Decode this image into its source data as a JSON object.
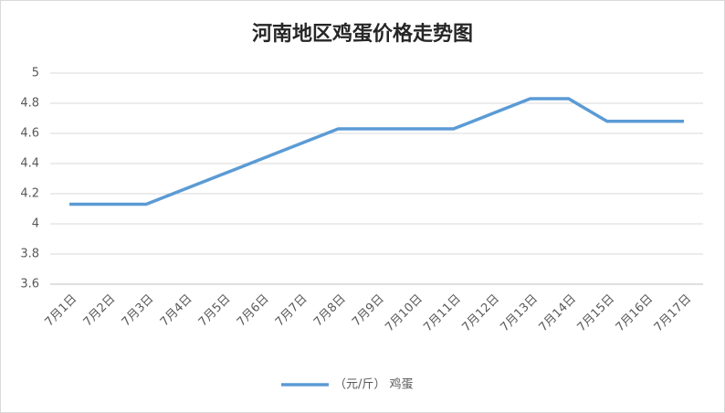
{
  "chart_data": {
    "type": "line",
    "title": "河南地区鸡蛋价格走势图",
    "categories": [
      "7月1日",
      "7月2日",
      "7月3日",
      "7月4日",
      "7月5日",
      "7月6日",
      "7月7日",
      "7月8日",
      "7月9日",
      "7月10日",
      "7月11日",
      "7月12日",
      "7月13日",
      "7月14日",
      "7月15日",
      "7月16日",
      "7月17日"
    ],
    "series": [
      {
        "name": "（元/斤） 鸡蛋",
        "color": "#5b9bd5",
        "values": [
          4.13,
          4.13,
          4.13,
          4.23,
          4.33,
          4.43,
          4.53,
          4.63,
          4.63,
          4.63,
          4.63,
          4.73,
          4.83,
          4.83,
          4.68,
          4.68,
          4.68
        ]
      }
    ],
    "ylim": [
      3.6,
      5
    ],
    "yticks": [
      3.6,
      3.8,
      4,
      4.2,
      4.4,
      4.6,
      4.8,
      5
    ],
    "grid": true,
    "legend": "bottom"
  }
}
